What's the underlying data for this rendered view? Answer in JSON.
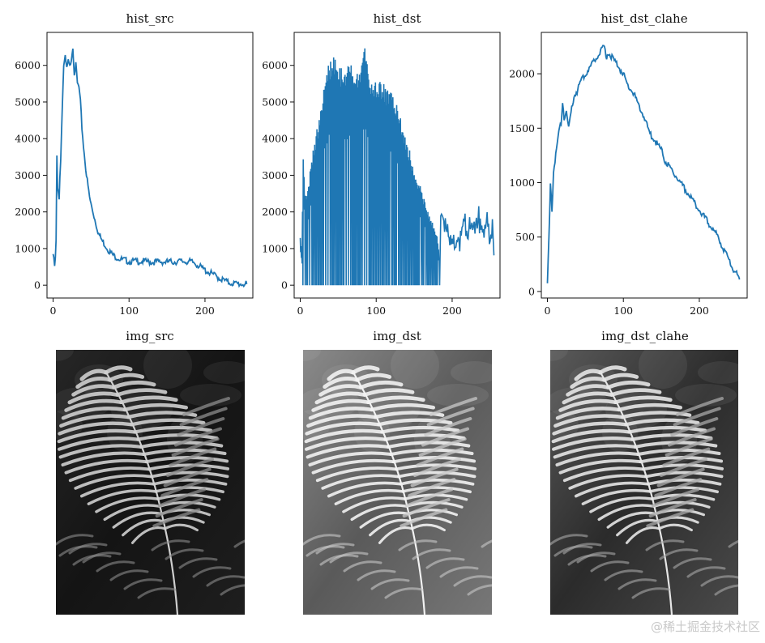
{
  "chart_data": [
    {
      "type": "line",
      "title": "hist_src",
      "xlabel": "",
      "ylabel": "",
      "xlim": [
        -8,
        263
      ],
      "ylim": [
        -350,
        6900
      ],
      "xticks": [
        0,
        100,
        200
      ],
      "yticks": [
        0,
        1000,
        2000,
        3000,
        4000,
        5000,
        6000
      ],
      "series": [
        {
          "name": "hist_src",
          "color": "#1f77b4",
          "x": [
            0,
            2,
            3,
            4,
            5,
            6,
            7,
            8,
            9,
            10,
            12,
            14,
            16,
            18,
            20,
            22,
            24,
            26,
            28,
            30,
            32,
            34,
            36,
            38,
            40,
            42,
            44,
            46,
            48,
            50,
            55,
            60,
            65,
            70,
            75,
            80,
            85,
            90,
            95,
            100,
            110,
            120,
            130,
            140,
            150,
            160,
            170,
            180,
            185,
            190,
            195,
            200,
            210,
            220,
            230,
            240,
            250,
            255
          ],
          "y": [
            850,
            520,
            700,
            1200,
            3500,
            2600,
            2500,
            2400,
            3000,
            3400,
            4800,
            6000,
            6200,
            5900,
            6100,
            5950,
            6200,
            6500,
            5800,
            6000,
            5500,
            5400,
            5000,
            4300,
            3800,
            3400,
            3000,
            2700,
            2400,
            2200,
            1800,
            1400,
            1200,
            1050,
            900,
            800,
            750,
            700,
            680,
            650,
            650,
            650,
            630,
            640,
            630,
            640,
            650,
            640,
            620,
            560,
            480,
            410,
            300,
            180,
            80,
            40,
            30,
            30
          ]
        }
      ]
    },
    {
      "type": "line",
      "title": "hist_dst",
      "xlabel": "",
      "ylabel": "",
      "xlim": [
        -8,
        263
      ],
      "ylim": [
        -350,
        6900
      ],
      "xticks": [
        0,
        100,
        200
      ],
      "yticks": [
        0,
        1000,
        2000,
        3000,
        4000,
        5000,
        6000
      ],
      "series": [
        {
          "name": "hist_dst",
          "color": "#1f77b4",
          "description_points": "envelope of spike train (spikes drop to 0 between filled bins until ~183)",
          "env_x": [
            0,
            2,
            4,
            6,
            10,
            15,
            20,
            25,
            30,
            35,
            40,
            45,
            50,
            55,
            60,
            65,
            70,
            75,
            80,
            85,
            90,
            95,
            100,
            105,
            110,
            115,
            120,
            125,
            130,
            135,
            140,
            145,
            150,
            155,
            160,
            165,
            170,
            175,
            180,
            183
          ],
          "env_y": [
            1400,
            900,
            3500,
            2500,
            2600,
            3500,
            4100,
            4600,
            5200,
            6000,
            6200,
            6250,
            6200,
            5900,
            5800,
            6100,
            6000,
            5900,
            6000,
            6500,
            5900,
            5700,
            5500,
            5600,
            5500,
            5400,
            5500,
            5200,
            4800,
            4300,
            4000,
            3600,
            3200,
            2900,
            2600,
            2200,
            1900,
            1700,
            1400,
            800
          ],
          "tail_x": [
            185,
            188,
            190,
            193,
            196,
            200,
            205,
            210,
            215,
            220,
            225,
            230,
            235,
            240,
            245,
            250,
            253,
            255
          ],
          "tail_y": [
            1600,
            2300,
            1800,
            1500,
            1300,
            1200,
            1100,
            1100,
            1900,
            1300,
            1900,
            1400,
            1800,
            1300,
            1800,
            1200,
            1600,
            700
          ]
        }
      ]
    },
    {
      "type": "line",
      "title": "hist_dst_clahe",
      "xlabel": "",
      "ylabel": "",
      "xlim": [
        -8,
        263
      ],
      "ylim": [
        -60,
        2380
      ],
      "xticks": [
        0,
        100,
        200
      ],
      "yticks": [
        0,
        500,
        1000,
        1500,
        2000
      ],
      "series": [
        {
          "name": "hist_dst_clahe",
          "color": "#1f77b4",
          "x": [
            0,
            2,
            4,
            5,
            6,
            8,
            10,
            12,
            15,
            18,
            20,
            22,
            25,
            28,
            30,
            35,
            40,
            45,
            50,
            55,
            60,
            65,
            70,
            75,
            78,
            80,
            85,
            90,
            95,
            100,
            105,
            110,
            115,
            120,
            125,
            130,
            135,
            140,
            145,
            150,
            155,
            160,
            165,
            170,
            175,
            180,
            185,
            190,
            195,
            200,
            205,
            210,
            215,
            220,
            225,
            230,
            235,
            240,
            245,
            250,
            253
          ],
          "y": [
            60,
            500,
            1000,
            900,
            740,
            1100,
            1200,
            1300,
            1450,
            1550,
            1750,
            1600,
            1650,
            1500,
            1600,
            1800,
            1850,
            1950,
            2000,
            2050,
            2100,
            2150,
            2200,
            2250,
            2150,
            2200,
            2150,
            2100,
            2050,
            2000,
            1900,
            1850,
            1800,
            1700,
            1650,
            1550,
            1450,
            1400,
            1350,
            1300,
            1200,
            1150,
            1100,
            1050,
            1000,
            950,
            900,
            850,
            800,
            750,
            700,
            650,
            600,
            550,
            500,
            420,
            350,
            280,
            200,
            150,
            110
          ]
        }
      ]
    }
  ],
  "images": [
    {
      "title": "img_src"
    },
    {
      "title": "img_dst"
    },
    {
      "title": "img_dst_clahe"
    }
  ],
  "watermark": "@稀土掘金技术社区"
}
